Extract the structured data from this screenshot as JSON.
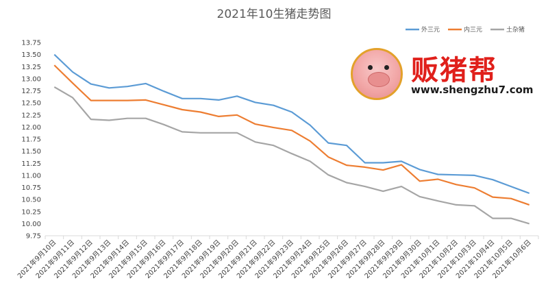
{
  "chart_data": {
    "type": "line",
    "title": "2021年10生猪走势图",
    "xlabel": "",
    "ylabel": "",
    "ylim": [
      9.75,
      13.75
    ],
    "ytick_step": 0.25,
    "grid": false,
    "legend_position": "top-right",
    "categories": [
      "2021年9月10日",
      "2021年9月11日",
      "2021年9月12日",
      "2021年9月13日",
      "2021年9月14日",
      "2021年9月15日",
      "2021年9月16日",
      "2021年9月17日",
      "2021年9月18日",
      "2021年9月19日",
      "2021年9月20日",
      "2021年9月21日",
      "2021年9月22日",
      "2021年9月23日",
      "2021年9月24日",
      "2021年9月25日",
      "2021年9月26日",
      "2021年9月27日",
      "2021年9月28日",
      "2021年9月29日",
      "2021年9月30日",
      "2021年10月1日",
      "2021年10月2日",
      "2021年10月3日",
      "2021年10月4日",
      "2021年10月5日",
      "2021年10月6日"
    ],
    "series": [
      {
        "name": "外三元",
        "color": "#5b9bd5",
        "values": [
          13.5,
          13.14,
          12.89,
          12.81,
          12.84,
          12.9,
          12.74,
          12.59,
          12.59,
          12.56,
          12.64,
          12.51,
          12.45,
          12.31,
          12.04,
          11.67,
          11.62,
          11.26,
          11.26,
          11.29,
          11.12,
          11.02,
          11.01,
          11.0,
          10.91,
          10.77,
          10.63
        ]
      },
      {
        "name": "内三元",
        "color": "#ed7d31",
        "values": [
          13.28,
          12.91,
          12.55,
          12.55,
          12.55,
          12.56,
          12.46,
          12.36,
          12.31,
          12.22,
          12.25,
          12.06,
          11.99,
          11.93,
          11.71,
          11.38,
          11.21,
          11.17,
          11.11,
          11.22,
          10.88,
          10.92,
          10.81,
          10.74,
          10.55,
          10.52,
          10.39
        ]
      },
      {
        "name": "土杂猪",
        "color": "#a5a5a5",
        "values": [
          12.83,
          12.61,
          12.16,
          12.14,
          12.18,
          12.18,
          12.05,
          11.9,
          11.88,
          11.88,
          11.88,
          11.69,
          11.62,
          11.45,
          11.29,
          11.01,
          10.85,
          10.77,
          10.67,
          10.77,
          10.56,
          10.47,
          10.39,
          10.37,
          10.11,
          10.11,
          10.0
        ]
      }
    ]
  },
  "logo": {
    "brand": "贩猪帮",
    "url": "www.shengzhu7.com"
  }
}
